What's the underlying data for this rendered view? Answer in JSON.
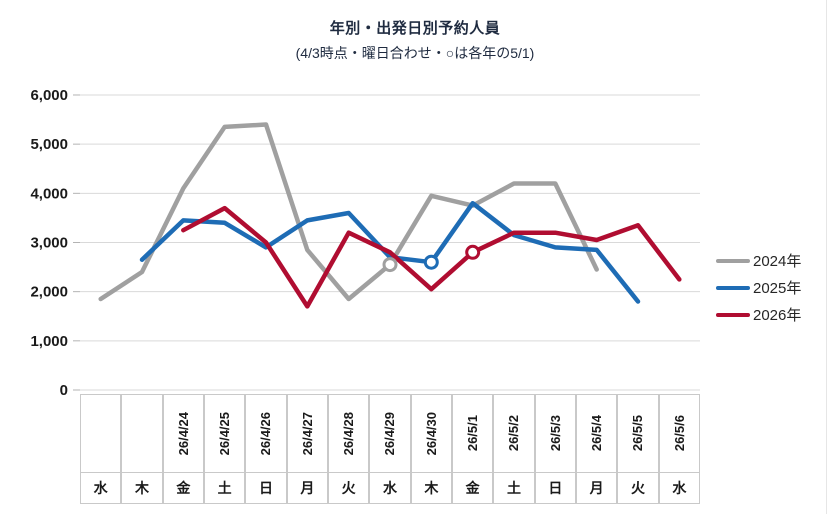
{
  "chart": {
    "title": "年別・出発日別予約人員",
    "subtitle": "(4/3時点・曜日合わせ・○は各年の5/1)"
  },
  "chart_data": {
    "type": "line",
    "title": "年別・出発日別予約人員",
    "subtitle": "(4/3時点・曜日合わせ・○は各年の5/1)",
    "categories_date": [
      "",
      "",
      "26/4/24",
      "26/4/25",
      "26/4/26",
      "26/4/27",
      "26/4/28",
      "26/4/29",
      "26/4/30",
      "26/5/1",
      "26/5/2",
      "26/5/3",
      "26/5/4",
      "26/5/5",
      "26/5/6"
    ],
    "categories_weekday": [
      "水",
      "木",
      "金",
      "土",
      "日",
      "月",
      "火",
      "水",
      "木",
      "金",
      "土",
      "日",
      "月",
      "火",
      "水"
    ],
    "series": [
      {
        "name": "2024年",
        "color": "#a0a0a0",
        "values": [
          1850,
          2400,
          4100,
          5350,
          5400,
          2850,
          1850,
          2550,
          3950,
          3750,
          4200,
          4200,
          2450,
          null,
          null
        ],
        "marker_index": 7,
        "marker_meaning": "2024年の5/1"
      },
      {
        "name": "2025年",
        "color": "#1e6cb5",
        "values": [
          null,
          2650,
          3450,
          3400,
          2900,
          3450,
          3600,
          2700,
          2600,
          3800,
          3150,
          2900,
          2850,
          1800,
          null
        ],
        "marker_index": 8,
        "marker_meaning": "2025年の5/1"
      },
      {
        "name": "2026年",
        "color": "#b00d31",
        "values": [
          null,
          null,
          3250,
          3700,
          3000,
          1700,
          3200,
          2800,
          2050,
          2800,
          3200,
          3200,
          3050,
          3350,
          2250
        ],
        "marker_index": 9,
        "marker_meaning": "2026年の5/1"
      }
    ],
    "ylim": [
      0,
      6000
    ],
    "ytick_step": 1000,
    "ytick_labels": [
      "0",
      "1,000",
      "2,000",
      "3,000",
      "4,000",
      "5,000",
      "6,000"
    ],
    "ylabel": "",
    "xlabel": "",
    "grid": true,
    "legend_position": "right",
    "marker_style": "open-circle"
  }
}
